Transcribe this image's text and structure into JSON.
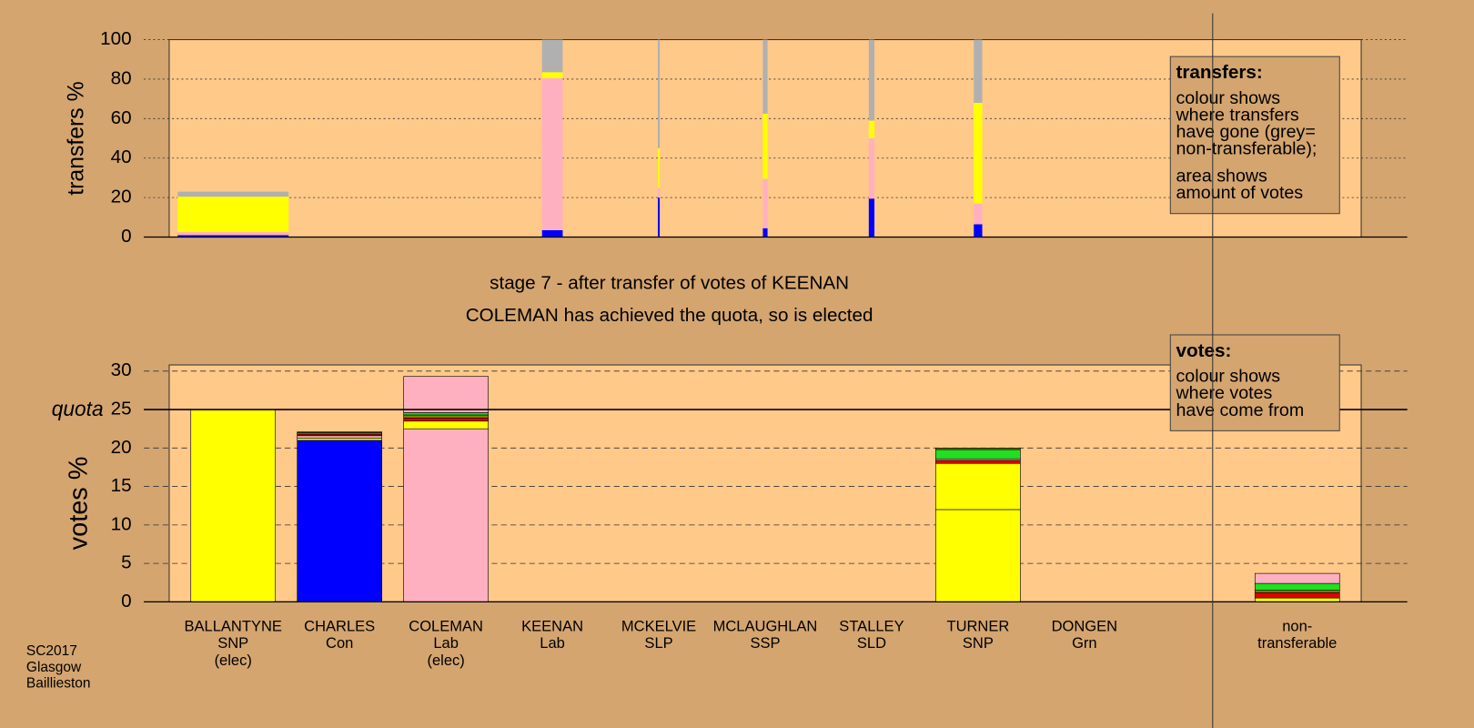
{
  "titles": [
    "stage 7 - after transfer of votes of KEENAN",
    "COLEMAN has achieved the quota, so is elected"
  ],
  "footer": [
    "SC2017",
    "Glasgow",
    "Baillieston"
  ],
  "chart_data": [
    {
      "type": "bar",
      "stacked": true,
      "ylabel": "transfers %",
      "ylim": [
        0,
        100
      ],
      "yticks": [
        0,
        20,
        40,
        60,
        80,
        100
      ],
      "grid": true,
      "note": {
        "heading": "transfers:",
        "paragraphs": [
          [
            "colour shows",
            "where transfers",
            "have gone (grey=",
            "non-transferable);"
          ],
          [
            "area shows",
            "amount of votes"
          ]
        ]
      },
      "amounts": [
        11.8,
        null,
        null,
        2.2,
        0.2,
        0.5,
        0.6,
        0.9,
        null,
        null
      ],
      "segments": [
        [
          {
            "color": "#0000ff",
            "value": 1
          },
          {
            "color": "#ffb0c0",
            "value": 1.5
          },
          {
            "color": "#ffff00",
            "value": 18
          },
          {
            "color": "#b0b0b0",
            "value": 2.5
          }
        ],
        [],
        [],
        [
          {
            "color": "#0000ff",
            "value": 3.5
          },
          {
            "color": "#ffb0c0",
            "value": 77
          },
          {
            "color": "#ffff00",
            "value": 3
          },
          {
            "color": "#b0b0b0",
            "value": 16.5
          }
        ],
        [
          {
            "color": "#0000ff",
            "value": 20
          },
          {
            "color": "#ffb0c0",
            "value": 5
          },
          {
            "color": "#ffff00",
            "value": 20
          },
          {
            "color": "#b0b0b0",
            "value": 55
          }
        ],
        [
          {
            "color": "#0000ff",
            "value": 4.5
          },
          {
            "color": "#ffb0c0",
            "value": 25
          },
          {
            "color": "#ffff00",
            "value": 33
          },
          {
            "color": "#b0b0b0",
            "value": 37.5
          }
        ],
        [
          {
            "color": "#0000ff",
            "value": 19.5
          },
          {
            "color": "#ffb0c0",
            "value": 30.5
          },
          {
            "color": "#ffff00",
            "value": 9
          },
          {
            "color": "#b0b0b0",
            "value": 41
          }
        ],
        [
          {
            "color": "#0000ff",
            "value": 6.5
          },
          {
            "color": "#ffb0c0",
            "value": 10.5
          },
          {
            "color": "#ffff00",
            "value": 51
          },
          {
            "color": "#b0b0b0",
            "value": 32
          }
        ],
        [],
        []
      ]
    },
    {
      "type": "bar",
      "stacked": true,
      "ylabel": "votes %",
      "ylim": [
        0,
        30.8
      ],
      "yticks": [
        0,
        5,
        10,
        15,
        20,
        25,
        30
      ],
      "grid": true,
      "quota": {
        "label": "quota",
        "value": 25
      },
      "note": {
        "heading": "votes:",
        "paragraphs": [
          [
            "colour shows",
            "where votes",
            "have come from"
          ]
        ]
      },
      "categories": [
        [
          "BALLANTYNE",
          "SNP",
          "(elec)"
        ],
        [
          "CHARLES",
          "Con"
        ],
        [
          "COLEMAN",
          "Lab",
          "(elec)"
        ],
        [
          "KEENAN",
          "Lab"
        ],
        [
          "MCKELVIE",
          "SLP"
        ],
        [
          "MCLAUGHLAN",
          "SSP"
        ],
        [
          "STALLEY",
          "SLD"
        ],
        [
          "TURNER",
          "SNP"
        ],
        [
          "DONGEN",
          "Grn"
        ],
        [
          "non-",
          "transferable"
        ]
      ],
      "segments": [
        [
          {
            "color": "#ffff00",
            "value": 25
          }
        ],
        [
          {
            "color": "#0000ff",
            "value": 21
          },
          {
            "color": "#ffff00",
            "value": 0.3
          },
          {
            "color": "#ffb0c0",
            "value": 0.3
          },
          {
            "color": "#e00000",
            "value": 0.2
          },
          {
            "color": "#808000",
            "value": 0.2
          },
          {
            "color": "#20e020",
            "value": 0.1
          }
        ],
        [
          {
            "color": "#ffb0c0",
            "value": 22.5
          },
          {
            "color": "#ffff00",
            "value": 1
          },
          {
            "color": "#e00000",
            "value": 0.4
          },
          {
            "color": "#808000",
            "value": 0.4
          },
          {
            "color": "#20e020",
            "value": 0.3
          },
          {
            "color": "#ffb0c0",
            "value": 4.7
          }
        ],
        [],
        [],
        [],
        [],
        [
          {
            "color": "#ffff00",
            "value": 12
          },
          {
            "color": "#ffff00",
            "value": 6
          },
          {
            "color": "#e00000",
            "value": 0.4
          },
          {
            "color": "#ffb0c0",
            "value": 0.2
          },
          {
            "color": "#20e020",
            "value": 1.2
          },
          {
            "color": "#808000",
            "value": 0.2
          }
        ],
        [],
        [
          {
            "color": "#ffff00",
            "value": 0.5
          },
          {
            "color": "#e00000",
            "value": 0.7
          },
          {
            "color": "#808000",
            "value": 0.3
          },
          {
            "color": "#20e020",
            "value": 0.9
          },
          {
            "color": "#ffb0c0",
            "value": 1.3
          }
        ]
      ]
    }
  ]
}
